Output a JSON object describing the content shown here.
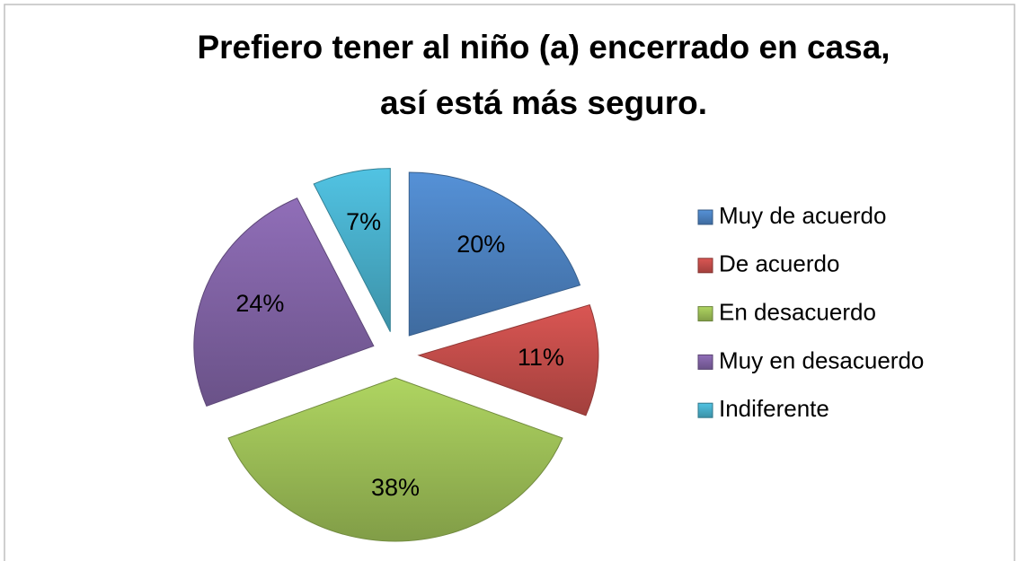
{
  "chart_data": {
    "type": "pie",
    "title": [
      "Prefiero tener al niño (a) encerrado en casa,",
      "así está más seguro."
    ],
    "categories": [
      "Muy de acuerdo",
      "De acuerdo",
      "En desacuerdo",
      "Muy en desacuerdo",
      "Indiferente"
    ],
    "values": [
      20,
      11,
      38,
      24,
      7
    ],
    "value_labels": [
      "20%",
      "11%",
      "38%",
      "24%",
      "7%"
    ],
    "colors": [
      "#4a7ebb",
      "#be4b48",
      "#98b954",
      "#7d60a0",
      "#46aac5"
    ],
    "legend": "right"
  }
}
